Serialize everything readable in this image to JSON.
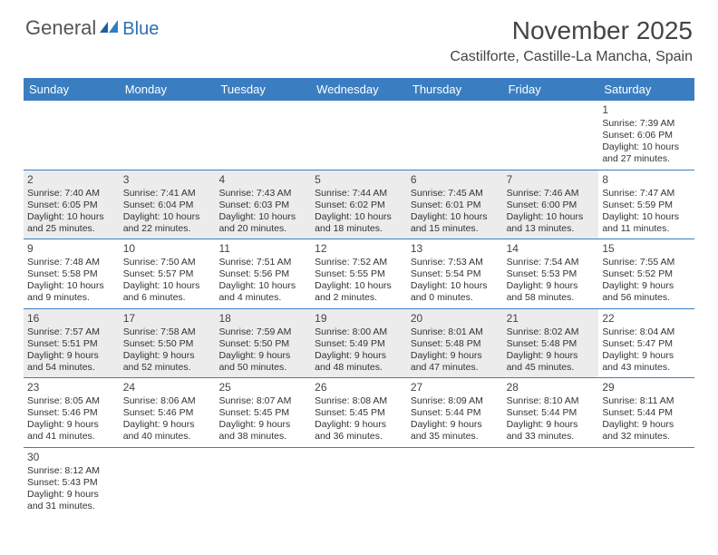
{
  "logo": {
    "general": "General",
    "blue": "Blue"
  },
  "title": "November 2025",
  "location": "Castilforte, Castille-La Mancha, Spain",
  "colors": {
    "header_bar": "#3a7ec1",
    "shade_bg": "#ececec",
    "divider": "#3a7ec1",
    "text": "#333333",
    "logo_blue": "#2f6fae"
  },
  "typography": {
    "title_fontsize": 28,
    "location_fontsize": 16,
    "dayhead_fontsize": 13,
    "cell_fontsize": 10.5
  },
  "day_names": [
    "Sunday",
    "Monday",
    "Tuesday",
    "Wednesday",
    "Thursday",
    "Friday",
    "Saturday"
  ],
  "weeks": [
    [
      null,
      null,
      null,
      null,
      null,
      null,
      {
        "n": "1",
        "sunrise": "Sunrise: 7:39 AM",
        "sunset": "Sunset: 6:06 PM",
        "day1": "Daylight: 10 hours",
        "day2": "and 27 minutes."
      }
    ],
    [
      {
        "n": "2",
        "shade": true,
        "sunrise": "Sunrise: 7:40 AM",
        "sunset": "Sunset: 6:05 PM",
        "day1": "Daylight: 10 hours",
        "day2": "and 25 minutes."
      },
      {
        "n": "3",
        "shade": true,
        "sunrise": "Sunrise: 7:41 AM",
        "sunset": "Sunset: 6:04 PM",
        "day1": "Daylight: 10 hours",
        "day2": "and 22 minutes."
      },
      {
        "n": "4",
        "shade": true,
        "sunrise": "Sunrise: 7:43 AM",
        "sunset": "Sunset: 6:03 PM",
        "day1": "Daylight: 10 hours",
        "day2": "and 20 minutes."
      },
      {
        "n": "5",
        "shade": true,
        "sunrise": "Sunrise: 7:44 AM",
        "sunset": "Sunset: 6:02 PM",
        "day1": "Daylight: 10 hours",
        "day2": "and 18 minutes."
      },
      {
        "n": "6",
        "shade": true,
        "sunrise": "Sunrise: 7:45 AM",
        "sunset": "Sunset: 6:01 PM",
        "day1": "Daylight: 10 hours",
        "day2": "and 15 minutes."
      },
      {
        "n": "7",
        "shade": true,
        "sunrise": "Sunrise: 7:46 AM",
        "sunset": "Sunset: 6:00 PM",
        "day1": "Daylight: 10 hours",
        "day2": "and 13 minutes."
      },
      {
        "n": "8",
        "sunrise": "Sunrise: 7:47 AM",
        "sunset": "Sunset: 5:59 PM",
        "day1": "Daylight: 10 hours",
        "day2": "and 11 minutes."
      }
    ],
    [
      {
        "n": "9",
        "sunrise": "Sunrise: 7:48 AM",
        "sunset": "Sunset: 5:58 PM",
        "day1": "Daylight: 10 hours",
        "day2": "and 9 minutes."
      },
      {
        "n": "10",
        "sunrise": "Sunrise: 7:50 AM",
        "sunset": "Sunset: 5:57 PM",
        "day1": "Daylight: 10 hours",
        "day2": "and 6 minutes."
      },
      {
        "n": "11",
        "sunrise": "Sunrise: 7:51 AM",
        "sunset": "Sunset: 5:56 PM",
        "day1": "Daylight: 10 hours",
        "day2": "and 4 minutes."
      },
      {
        "n": "12",
        "sunrise": "Sunrise: 7:52 AM",
        "sunset": "Sunset: 5:55 PM",
        "day1": "Daylight: 10 hours",
        "day2": "and 2 minutes."
      },
      {
        "n": "13",
        "sunrise": "Sunrise: 7:53 AM",
        "sunset": "Sunset: 5:54 PM",
        "day1": "Daylight: 10 hours",
        "day2": "and 0 minutes."
      },
      {
        "n": "14",
        "sunrise": "Sunrise: 7:54 AM",
        "sunset": "Sunset: 5:53 PM",
        "day1": "Daylight: 9 hours",
        "day2": "and 58 minutes."
      },
      {
        "n": "15",
        "sunrise": "Sunrise: 7:55 AM",
        "sunset": "Sunset: 5:52 PM",
        "day1": "Daylight: 9 hours",
        "day2": "and 56 minutes."
      }
    ],
    [
      {
        "n": "16",
        "shade": true,
        "sunrise": "Sunrise: 7:57 AM",
        "sunset": "Sunset: 5:51 PM",
        "day1": "Daylight: 9 hours",
        "day2": "and 54 minutes."
      },
      {
        "n": "17",
        "shade": true,
        "sunrise": "Sunrise: 7:58 AM",
        "sunset": "Sunset: 5:50 PM",
        "day1": "Daylight: 9 hours",
        "day2": "and 52 minutes."
      },
      {
        "n": "18",
        "shade": true,
        "sunrise": "Sunrise: 7:59 AM",
        "sunset": "Sunset: 5:50 PM",
        "day1": "Daylight: 9 hours",
        "day2": "and 50 minutes."
      },
      {
        "n": "19",
        "shade": true,
        "sunrise": "Sunrise: 8:00 AM",
        "sunset": "Sunset: 5:49 PM",
        "day1": "Daylight: 9 hours",
        "day2": "and 48 minutes."
      },
      {
        "n": "20",
        "shade": true,
        "sunrise": "Sunrise: 8:01 AM",
        "sunset": "Sunset: 5:48 PM",
        "day1": "Daylight: 9 hours",
        "day2": "and 47 minutes."
      },
      {
        "n": "21",
        "shade": true,
        "sunrise": "Sunrise: 8:02 AM",
        "sunset": "Sunset: 5:48 PM",
        "day1": "Daylight: 9 hours",
        "day2": "and 45 minutes."
      },
      {
        "n": "22",
        "sunrise": "Sunrise: 8:04 AM",
        "sunset": "Sunset: 5:47 PM",
        "day1": "Daylight: 9 hours",
        "day2": "and 43 minutes."
      }
    ],
    [
      {
        "n": "23",
        "sunrise": "Sunrise: 8:05 AM",
        "sunset": "Sunset: 5:46 PM",
        "day1": "Daylight: 9 hours",
        "day2": "and 41 minutes."
      },
      {
        "n": "24",
        "sunrise": "Sunrise: 8:06 AM",
        "sunset": "Sunset: 5:46 PM",
        "day1": "Daylight: 9 hours",
        "day2": "and 40 minutes."
      },
      {
        "n": "25",
        "sunrise": "Sunrise: 8:07 AM",
        "sunset": "Sunset: 5:45 PM",
        "day1": "Daylight: 9 hours",
        "day2": "and 38 minutes."
      },
      {
        "n": "26",
        "sunrise": "Sunrise: 8:08 AM",
        "sunset": "Sunset: 5:45 PM",
        "day1": "Daylight: 9 hours",
        "day2": "and 36 minutes."
      },
      {
        "n": "27",
        "sunrise": "Sunrise: 8:09 AM",
        "sunset": "Sunset: 5:44 PM",
        "day1": "Daylight: 9 hours",
        "day2": "and 35 minutes."
      },
      {
        "n": "28",
        "sunrise": "Sunrise: 8:10 AM",
        "sunset": "Sunset: 5:44 PM",
        "day1": "Daylight: 9 hours",
        "day2": "and 33 minutes."
      },
      {
        "n": "29",
        "sunrise": "Sunrise: 8:11 AM",
        "sunset": "Sunset: 5:44 PM",
        "day1": "Daylight: 9 hours",
        "day2": "and 32 minutes."
      }
    ],
    [
      {
        "n": "30",
        "sunrise": "Sunrise: 8:12 AM",
        "sunset": "Sunset: 5:43 PM",
        "day1": "Daylight: 9 hours",
        "day2": "and 31 minutes."
      },
      null,
      null,
      null,
      null,
      null,
      null
    ]
  ]
}
